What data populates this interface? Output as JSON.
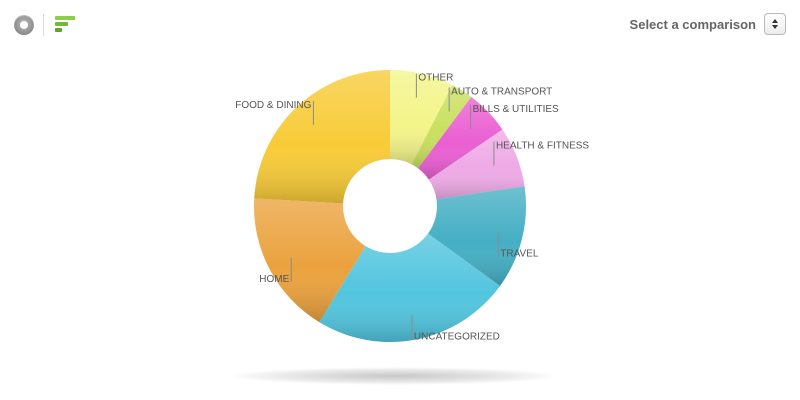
{
  "toolbar": {
    "donut_icon": "donut-chart-icon",
    "bars_icon": "bar-chart-icon"
  },
  "comparison": {
    "label": "Select a comparison",
    "icon": "updown-arrows-icon"
  },
  "chart_data": {
    "type": "pie",
    "title": "",
    "donut": true,
    "legend": "none",
    "categories": [
      "OTHER",
      "AUTO & TRANSPORT",
      "BILLS & UTILITIES",
      "HEALTH & FITNESS",
      "TRAVEL",
      "UNCATEGORIZED",
      "HOME",
      "FOOD & DINING"
    ],
    "values": [
      7.6,
      2.6,
      5.3,
      7.2,
      12.3,
      23.7,
      17.2,
      24.1
    ],
    "unit": "%",
    "colors": [
      "#F3F58A",
      "#C9E060",
      "#EA5FD2",
      "#EEAAE6",
      "#45AFC4",
      "#52C5DE",
      "#EBA23E",
      "#F8CB38"
    ]
  }
}
